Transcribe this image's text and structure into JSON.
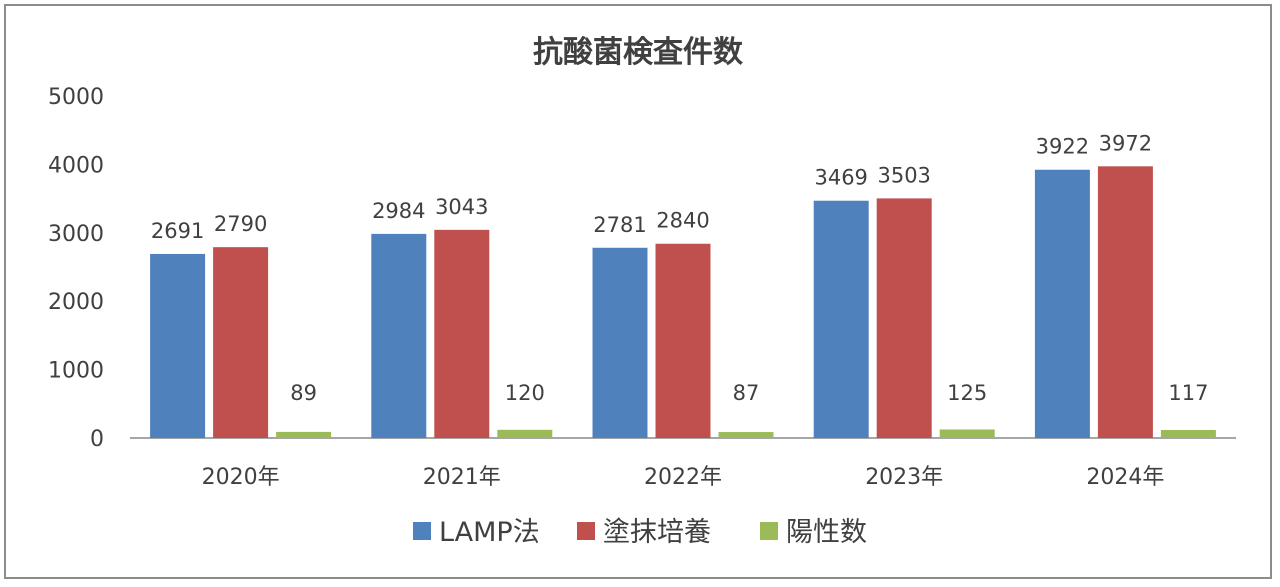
{
  "chart_data": {
    "type": "bar",
    "title": "抗酸菌検査件数",
    "categories": [
      "2020年",
      "2021年",
      "2022年",
      "2023年",
      "2024年"
    ],
    "series": [
      {
        "name": "LAMP法",
        "color": "#4F81BD",
        "values": [
          2691,
          2984,
          2781,
          3469,
          3922
        ]
      },
      {
        "name": "塗抹培養",
        "color": "#C0504D",
        "values": [
          2790,
          3043,
          2840,
          3503,
          3972
        ]
      },
      {
        "name": "陽性数",
        "color": "#9BBB59",
        "values": [
          89,
          120,
          87,
          125,
          117
        ]
      }
    ],
    "ylim": [
      0,
      5000
    ],
    "yticks": [
      "0",
      "1000",
      "2000",
      "3000",
      "4000",
      "5000"
    ],
    "grid": false,
    "legend_position": "bottom",
    "axis_color": "#A6A6A6"
  }
}
